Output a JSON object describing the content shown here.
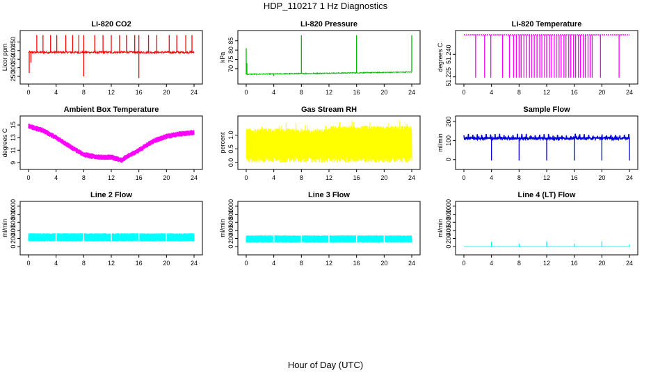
{
  "page": {
    "title": "HDP_110217  1 Hz Diagnostics",
    "xlabel": "Hour of Day (UTC)"
  },
  "chart_data": [
    {
      "type": "line",
      "title": "Li-820 CO2",
      "ylabel": "Licor ppm",
      "color": "#ff0000",
      "xlim": [
        0,
        24
      ],
      "x_ticks": [
        0,
        4,
        8,
        12,
        16,
        20,
        24
      ],
      "ylim": [
        230,
        500
      ],
      "y_ticks": [
        250,
        300,
        350,
        400,
        450
      ],
      "y_tick_labels": [
        "250",
        "300",
        "350",
        "400",
        "450"
      ],
      "series": [
        {
          "name": "CO2",
          "base": 390,
          "noise": 6,
          "spikes": [
            {
              "x": 0.35,
              "y": 330
            },
            {
              "x": 0.1,
              "y": 270
            },
            {
              "x": 1.2,
              "y": 490
            },
            {
              "x": 2.1,
              "y": 490
            },
            {
              "x": 3.2,
              "y": 490
            },
            {
              "x": 4.1,
              "y": 490
            },
            {
              "x": 5.4,
              "y": 490
            },
            {
              "x": 6.4,
              "y": 490
            },
            {
              "x": 7.3,
              "y": 490
            },
            {
              "x": 8.0,
              "y": 490
            },
            {
              "x": 8.0,
              "y": 250
            },
            {
              "x": 9.6,
              "y": 490
            },
            {
              "x": 10.8,
              "y": 490
            },
            {
              "x": 12.0,
              "y": 490
            },
            {
              "x": 13.2,
              "y": 490
            },
            {
              "x": 14.2,
              "y": 490
            },
            {
              "x": 15.4,
              "y": 490
            },
            {
              "x": 16.0,
              "y": 490
            },
            {
              "x": 16.0,
              "y": 240
            },
            {
              "x": 17.4,
              "y": 490
            },
            {
              "x": 18.6,
              "y": 490
            },
            {
              "x": 20.4,
              "y": 490
            },
            {
              "x": 21.5,
              "y": 490
            },
            {
              "x": 22.8,
              "y": 490
            },
            {
              "x": 23.7,
              "y": 490
            }
          ]
        }
      ]
    },
    {
      "type": "line",
      "title": "Li-820 Pressure",
      "ylabel": "kPa",
      "color": "#00bb00",
      "xlim": [
        0,
        24
      ],
      "x_ticks": [
        0,
        4,
        8,
        12,
        16,
        20,
        24
      ],
      "ylim": [
        64,
        89
      ],
      "y_ticks": [
        70,
        75,
        80,
        85
      ],
      "y_tick_labels": [
        "70",
        "75",
        "80",
        "85"
      ],
      "series": [
        {
          "name": "Pressure",
          "start": 67.0,
          "end": 68.2,
          "noise": 0.25,
          "spikes": [
            {
              "x": 0.0,
              "y": 81
            },
            {
              "x": 0.1,
              "y": 73
            },
            {
              "x": 8.0,
              "y": 88
            },
            {
              "x": 16.0,
              "y": 88
            },
            {
              "x": 24.0,
              "y": 88
            },
            {
              "x": 4.0,
              "y": 66
            }
          ]
        }
      ]
    },
    {
      "type": "line",
      "title": "Li-820 Temperature",
      "ylabel": "degrees C",
      "color": "#ff00ff",
      "xlim": [
        0,
        24
      ],
      "x_ticks": [
        0,
        4,
        8,
        12,
        16,
        20,
        24
      ],
      "ylim": [
        51.223,
        51.254
      ],
      "y_ticks": [
        51.225,
        51.24
      ],
      "y_tick_labels": [
        "51.225",
        "51.240"
      ],
      "series": [
        {
          "name": "Temperature",
          "base": 51.253,
          "low": 51.2245,
          "drops": [
            1.7,
            3.0,
            3.9,
            5.6,
            6.6,
            7.2,
            7.6,
            8.0,
            8.3,
            8.7,
            9.1,
            9.5,
            9.8,
            10.2,
            10.6,
            11.0,
            11.3,
            11.7,
            12.0,
            12.4,
            12.7,
            13.1,
            13.4,
            13.8,
            14.1,
            14.5,
            14.8,
            15.2,
            15.5,
            15.9,
            16.2,
            16.6,
            16.9,
            17.3,
            17.6,
            18.0,
            18.3,
            18.6,
            19.8,
            22.5
          ]
        }
      ]
    },
    {
      "type": "line",
      "title": "Ambient Box Temperature",
      "ylabel": "degrees C",
      "color": "#ff00ff",
      "xlim": [
        0,
        24
      ],
      "x_ticks": [
        0,
        4,
        8,
        12,
        16,
        20,
        24
      ],
      "ylim": [
        8.6,
        16.0
      ],
      "y_ticks": [
        9,
        11,
        13,
        15
      ],
      "y_tick_labels": [
        "9",
        "11",
        "13",
        "15"
      ],
      "series": [
        {
          "name": "Ambient",
          "band": 0.9,
          "profile": [
            {
              "x": 0,
              "y": 14.8
            },
            {
              "x": 2,
              "y": 14.2
            },
            {
              "x": 4,
              "y": 13.0
            },
            {
              "x": 6,
              "y": 11.6
            },
            {
              "x": 8,
              "y": 10.3
            },
            {
              "x": 10,
              "y": 9.9
            },
            {
              "x": 12,
              "y": 9.9
            },
            {
              "x": 13.5,
              "y": 9.4
            },
            {
              "x": 14,
              "y": 9.8
            },
            {
              "x": 16,
              "y": 11.0
            },
            {
              "x": 18,
              "y": 12.4
            },
            {
              "x": 20,
              "y": 13.2
            },
            {
              "x": 22,
              "y": 13.6
            },
            {
              "x": 24,
              "y": 13.8
            }
          ]
        }
      ]
    },
    {
      "type": "line",
      "title": "Gas Stream RH",
      "ylabel": "percent",
      "color": "#ffff00",
      "xlim": [
        0,
        24
      ],
      "x_ticks": [
        0,
        4,
        8,
        12,
        16,
        20,
        24
      ],
      "ylim": [
        -0.1,
        1.6
      ],
      "y_ticks": [
        0.0,
        0.5,
        1.0
      ],
      "y_tick_labels": [
        "0.0",
        "0.5",
        "1.0"
      ],
      "series": [
        {
          "name": "RH",
          "low": 0.1,
          "high": 1.25,
          "max_peak": 1.45
        }
      ]
    },
    {
      "type": "line",
      "title": "Sample Flow",
      "ylabel": "ml/min",
      "color": "#0000dd",
      "xlim": [
        0,
        24
      ],
      "x_ticks": [
        0,
        4,
        8,
        12,
        16,
        20,
        24
      ],
      "ylim": [
        -30,
        215
      ],
      "y_ticks": [
        0,
        100,
        200
      ],
      "y_tick_labels": [
        "0",
        "100",
        "200"
      ],
      "series": [
        {
          "name": "Sample Flow",
          "base": 112,
          "noise": 6,
          "drops": [
            4.0,
            8.0,
            12.0,
            16.0,
            20.0,
            24.0
          ],
          "drop_to": -5
        }
      ]
    },
    {
      "type": "line",
      "title": "Line 2 Flow",
      "ylabel": "ml/min",
      "color": "#00ffff",
      "xlim": [
        0,
        24
      ],
      "x_ticks": [
        0,
        4,
        8,
        12,
        16,
        20,
        24
      ],
      "ylim": [
        -100,
        1050
      ],
      "y_ticks": [
        0,
        200,
        400,
        600,
        800,
        1000
      ],
      "y_tick_labels": [
        "0",
        "200",
        "400",
        "600",
        "800",
        "1000"
      ],
      "series": [
        {
          "name": "Line 2",
          "low": 130,
          "high": 330,
          "gaps": [
            4.0,
            8.0,
            12.0,
            16.0,
            20.0
          ]
        }
      ]
    },
    {
      "type": "line",
      "title": "Line 3 Flow",
      "ylabel": "ml/min",
      "color": "#00ffff",
      "xlim": [
        0,
        24
      ],
      "x_ticks": [
        0,
        4,
        8,
        12,
        16,
        20,
        24
      ],
      "ylim": [
        -100,
        1050
      ],
      "y_ticks": [
        0,
        200,
        400,
        600,
        800,
        1000
      ],
      "y_tick_labels": [
        "0",
        "200",
        "400",
        "600",
        "800",
        "1000"
      ],
      "series": [
        {
          "name": "Line 3",
          "low": 100,
          "high": 280,
          "gaps": [
            4.0,
            8.0,
            12.0,
            16.0,
            20.0
          ]
        }
      ]
    },
    {
      "type": "line",
      "title": "Line 4 (LT) Flow",
      "ylabel": "ml/min",
      "color": "#00ffff",
      "xlim": [
        0,
        24
      ],
      "x_ticks": [
        0,
        4,
        8,
        12,
        16,
        20,
        24
      ],
      "ylim": [
        -100,
        1050
      ],
      "y_ticks": [
        0,
        200,
        400,
        600,
        800,
        1000
      ],
      "y_tick_labels": [
        "0",
        "200",
        "400",
        "600",
        "800",
        "1000"
      ],
      "series": [
        {
          "name": "Line 4",
          "base": 0,
          "spikes": [
            {
              "x": 4.0,
              "y": 120
            },
            {
              "x": 8.0,
              "y": 70
            },
            {
              "x": 12.0,
              "y": 130
            },
            {
              "x": 16.0,
              "y": 70
            },
            {
              "x": 20.0,
              "y": 130
            },
            {
              "x": 24.0,
              "y": 60
            }
          ]
        }
      ]
    }
  ]
}
